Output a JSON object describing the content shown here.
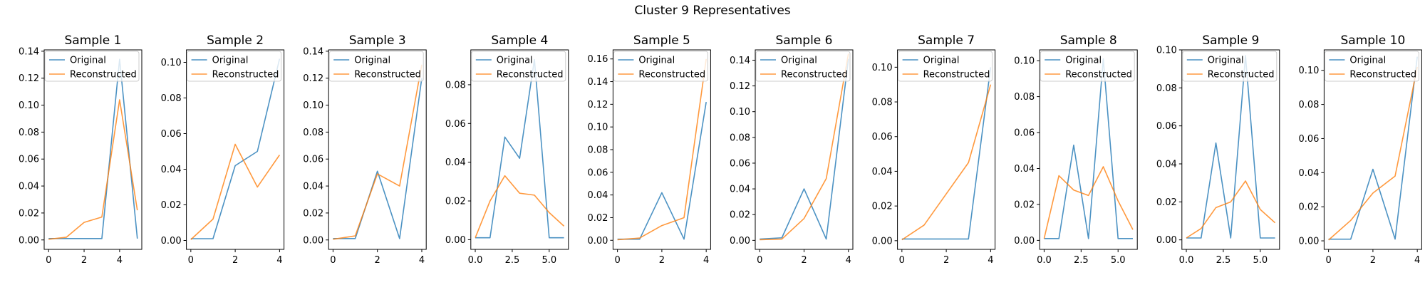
{
  "figure": {
    "suptitle": "Cluster 9 Representatives"
  },
  "colors": {
    "original": "#1f77b4",
    "reconstructed": "#ff7f0e"
  },
  "chart_data": [
    {
      "type": "line",
      "title": "Sample 1",
      "xlim": [
        -0.25,
        5.25
      ],
      "ylim": [
        -0.007,
        0.141
      ],
      "xticks": [
        0,
        2,
        4
      ],
      "xtick_labels": [
        "0",
        "2",
        "4"
      ],
      "yticks": [
        0.0,
        0.02,
        0.04,
        0.06,
        0.08,
        0.1,
        0.12,
        0.14
      ],
      "ytick_labels": [
        "0.00",
        "0.02",
        "0.04",
        "0.06",
        "0.08",
        "0.10",
        "0.12",
        "0.14"
      ],
      "legend": "upper-right",
      "series": [
        {
          "name": "Original",
          "x": [
            0,
            1,
            2,
            3,
            4,
            5
          ],
          "values": [
            0.001,
            0.001,
            0.001,
            0.001,
            0.134,
            0.001
          ]
        },
        {
          "name": "Reconstructed",
          "x": [
            0,
            1,
            2,
            3,
            4,
            5
          ],
          "values": [
            0.0005,
            0.002,
            0.013,
            0.017,
            0.104,
            0.022
          ]
        }
      ]
    },
    {
      "type": "line",
      "title": "Sample 2",
      "xlim": [
        -0.2,
        4.2
      ],
      "ylim": [
        -0.005,
        0.107
      ],
      "xticks": [
        0,
        2,
        4
      ],
      "xtick_labels": [
        "0",
        "2",
        "4"
      ],
      "yticks": [
        0.0,
        0.02,
        0.04,
        0.06,
        0.08,
        0.1
      ],
      "ytick_labels": [
        "0.00",
        "0.02",
        "0.04",
        "0.06",
        "0.08",
        "0.10"
      ],
      "legend": "upper-right",
      "series": [
        {
          "name": "Original",
          "x": [
            0,
            1,
            2,
            3,
            4
          ],
          "values": [
            0.001,
            0.001,
            0.042,
            0.05,
            0.102
          ]
        },
        {
          "name": "Reconstructed",
          "x": [
            0,
            1,
            2,
            3,
            4
          ],
          "values": [
            0.0005,
            0.012,
            0.054,
            0.03,
            0.048
          ]
        }
      ]
    },
    {
      "type": "line",
      "title": "Sample 3",
      "xlim": [
        -0.2,
        4.2
      ],
      "ylim": [
        -0.007,
        0.141
      ],
      "xticks": [
        0,
        2,
        4
      ],
      "xtick_labels": [
        "0",
        "2",
        "4"
      ],
      "yticks": [
        0.0,
        0.02,
        0.04,
        0.06,
        0.08,
        0.1,
        0.12,
        0.14
      ],
      "ytick_labels": [
        "0.00",
        "0.02",
        "0.04",
        "0.06",
        "0.08",
        "0.10",
        "0.12",
        "0.14"
      ],
      "legend": "upper-right",
      "series": [
        {
          "name": "Original",
          "x": [
            0,
            1,
            2,
            3,
            4
          ],
          "values": [
            0.001,
            0.001,
            0.051,
            0.001,
            0.12
          ]
        },
        {
          "name": "Reconstructed",
          "x": [
            0,
            1,
            2,
            3,
            4
          ],
          "values": [
            0.0005,
            0.003,
            0.049,
            0.04,
            0.13
          ]
        }
      ]
    },
    {
      "type": "line",
      "title": "Sample 4",
      "xlim": [
        -0.3,
        6.3
      ],
      "ylim": [
        -0.005,
        0.098
      ],
      "xticks": [
        0,
        2.5,
        5
      ],
      "xtick_labels": [
        "0.0",
        "2.5",
        "5.0"
      ],
      "yticks": [
        0.0,
        0.02,
        0.04,
        0.06,
        0.08
      ],
      "ytick_labels": [
        "0.00",
        "0.02",
        "0.04",
        "0.06",
        "0.08"
      ],
      "legend": "upper-right",
      "series": [
        {
          "name": "Original",
          "x": [
            0,
            1,
            2,
            3,
            4,
            5,
            6
          ],
          "values": [
            0.001,
            0.001,
            0.053,
            0.042,
            0.093,
            0.001,
            0.001
          ]
        },
        {
          "name": "Reconstructed",
          "x": [
            0,
            1,
            2,
            3,
            4,
            5,
            6
          ],
          "values": [
            0.001,
            0.02,
            0.033,
            0.024,
            0.023,
            0.014,
            0.007
          ]
        }
      ]
    },
    {
      "type": "line",
      "title": "Sample 5",
      "xlim": [
        -0.2,
        4.2
      ],
      "ylim": [
        -0.008,
        0.168
      ],
      "xticks": [
        0,
        2,
        4
      ],
      "xtick_labels": [
        "0",
        "2",
        "4"
      ],
      "yticks": [
        0.0,
        0.02,
        0.04,
        0.06,
        0.08,
        0.1,
        0.12,
        0.14,
        0.16
      ],
      "ytick_labels": [
        "0.00",
        "0.02",
        "0.04",
        "0.06",
        "0.08",
        "0.10",
        "0.12",
        "0.14",
        "0.16"
      ],
      "legend": "upper-right",
      "series": [
        {
          "name": "Original",
          "x": [
            0,
            1,
            2,
            3,
            4
          ],
          "values": [
            0.001,
            0.001,
            0.042,
            0.001,
            0.122
          ]
        },
        {
          "name": "Reconstructed",
          "x": [
            0,
            1,
            2,
            3,
            4
          ],
          "values": [
            0.0005,
            0.002,
            0.013,
            0.02,
            0.16
          ]
        }
      ]
    },
    {
      "type": "line",
      "title": "Sample 6",
      "xlim": [
        -0.2,
        4.2
      ],
      "ylim": [
        -0.007,
        0.148
      ],
      "xticks": [
        0,
        2,
        4
      ],
      "xtick_labels": [
        "0",
        "2",
        "4"
      ],
      "yticks": [
        0.0,
        0.02,
        0.04,
        0.06,
        0.08,
        0.1,
        0.12,
        0.14
      ],
      "ytick_labels": [
        "0.00",
        "0.02",
        "0.04",
        "0.06",
        "0.08",
        "0.10",
        "0.12",
        "0.14"
      ],
      "legend": "upper-right",
      "series": [
        {
          "name": "Original",
          "x": [
            0,
            1,
            2,
            3,
            4
          ],
          "values": [
            0.001,
            0.002,
            0.04,
            0.001,
            0.141
          ]
        },
        {
          "name": "Reconstructed",
          "x": [
            0,
            1,
            2,
            3,
            4
          ],
          "values": [
            0.0005,
            0.001,
            0.017,
            0.048,
            0.145
          ]
        }
      ]
    },
    {
      "type": "line",
      "title": "Sample 7",
      "xlim": [
        -0.2,
        4.2
      ],
      "ylim": [
        -0.005,
        0.11
      ],
      "xticks": [
        0,
        2,
        4
      ],
      "xtick_labels": [
        "0",
        "2",
        "4"
      ],
      "yticks": [
        0.0,
        0.02,
        0.04,
        0.06,
        0.08,
        0.1
      ],
      "ytick_labels": [
        "0.00",
        "0.02",
        "0.04",
        "0.06",
        "0.08",
        "0.10"
      ],
      "legend": "upper-right",
      "series": [
        {
          "name": "Original",
          "x": [
            0,
            1,
            2,
            3,
            4
          ],
          "values": [
            0.001,
            0.001,
            0.001,
            0.001,
            0.1
          ]
        },
        {
          "name": "Reconstructed",
          "x": [
            0,
            1,
            2,
            3,
            4
          ],
          "values": [
            0.0005,
            0.009,
            0.027,
            0.045,
            0.09
          ]
        }
      ]
    },
    {
      "type": "line",
      "title": "Sample 8",
      "xlim": [
        -0.3,
        6.3
      ],
      "ylim": [
        -0.005,
        0.106
      ],
      "xticks": [
        0,
        2.5,
        5
      ],
      "xtick_labels": [
        "0.0",
        "2.5",
        "5.0"
      ],
      "yticks": [
        0.0,
        0.02,
        0.04,
        0.06,
        0.08,
        0.1
      ],
      "ytick_labels": [
        "0.00",
        "0.02",
        "0.04",
        "0.06",
        "0.08",
        "0.10"
      ],
      "legend": "upper-right",
      "series": [
        {
          "name": "Original",
          "x": [
            0,
            1,
            2,
            3,
            4,
            5,
            6
          ],
          "values": [
            0.001,
            0.001,
            0.053,
            0.001,
            0.101,
            0.001,
            0.001
          ]
        },
        {
          "name": "Reconstructed",
          "x": [
            0,
            1,
            2,
            3,
            4,
            5,
            6
          ],
          "values": [
            0.001,
            0.036,
            0.028,
            0.025,
            0.041,
            0.022,
            0.006
          ]
        }
      ]
    },
    {
      "type": "line",
      "title": "Sample 9",
      "xlim": [
        -0.3,
        6.3
      ],
      "ylim": [
        -0.005,
        0.1
      ],
      "xticks": [
        0,
        2.5,
        5
      ],
      "xtick_labels": [
        "0.0",
        "2.5",
        "5.0"
      ],
      "yticks": [
        0.0,
        0.02,
        0.04,
        0.06,
        0.08,
        0.1
      ],
      "ytick_labels": [
        "0.00",
        "0.02",
        "0.04",
        "0.06",
        "0.08",
        "0.10"
      ],
      "legend": "upper-right",
      "series": [
        {
          "name": "Original",
          "x": [
            0,
            1,
            2,
            3,
            4,
            5,
            6
          ],
          "values": [
            0.001,
            0.001,
            0.051,
            0.001,
            0.097,
            0.001,
            0.001
          ]
        },
        {
          "name": "Reconstructed",
          "x": [
            0,
            1,
            2,
            3,
            4,
            5,
            6
          ],
          "values": [
            0.001,
            0.006,
            0.017,
            0.02,
            0.031,
            0.016,
            0.009
          ]
        }
      ]
    },
    {
      "type": "line",
      "title": "Sample 10",
      "xlim": [
        -0.2,
        4.2
      ],
      "ylim": [
        -0.005,
        0.112
      ],
      "xticks": [
        0,
        2,
        4
      ],
      "xtick_labels": [
        "0",
        "2",
        "4"
      ],
      "yticks": [
        0.0,
        0.02,
        0.04,
        0.06,
        0.08,
        0.1
      ],
      "ytick_labels": [
        "0.00",
        "0.02",
        "0.04",
        "0.06",
        "0.08",
        "0.10"
      ],
      "legend": "upper-right",
      "series": [
        {
          "name": "Original",
          "x": [
            0,
            1,
            2,
            3,
            4
          ],
          "values": [
            0.001,
            0.001,
            0.042,
            0.001,
            0.108
          ]
        },
        {
          "name": "Reconstructed",
          "x": [
            0,
            1,
            2,
            3,
            4
          ],
          "values": [
            0.0005,
            0.012,
            0.028,
            0.038,
            0.102
          ]
        }
      ]
    }
  ]
}
